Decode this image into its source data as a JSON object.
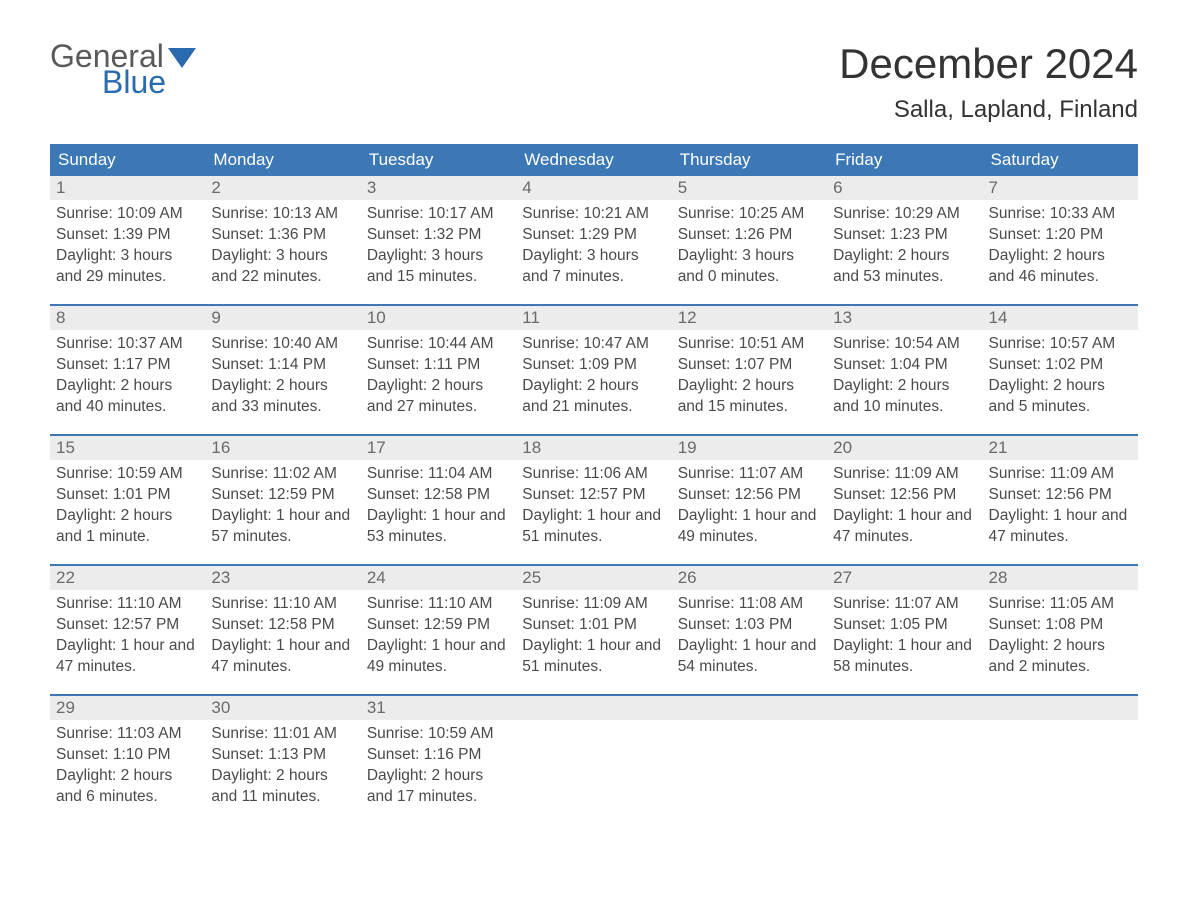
{
  "logo": {
    "general": "General",
    "blue": "Blue",
    "flag_color": "#2a6bb0"
  },
  "title": "December 2024",
  "location": "Salla, Lapland, Finland",
  "colors": {
    "header_bg": "#3b78b5",
    "header_text": "#ffffff",
    "daynum_bg": "#ececec",
    "week_divider": "#3b78b5",
    "body_text": "#4a4a4a",
    "page_bg": "#ffffff"
  },
  "weekdays": [
    "Sunday",
    "Monday",
    "Tuesday",
    "Wednesday",
    "Thursday",
    "Friday",
    "Saturday"
  ],
  "weeks": [
    [
      {
        "n": "1",
        "sunrise": "Sunrise: 10:09 AM",
        "sunset": "Sunset: 1:39 PM",
        "daylight": "Daylight: 3 hours and 29 minutes."
      },
      {
        "n": "2",
        "sunrise": "Sunrise: 10:13 AM",
        "sunset": "Sunset: 1:36 PM",
        "daylight": "Daylight: 3 hours and 22 minutes."
      },
      {
        "n": "3",
        "sunrise": "Sunrise: 10:17 AM",
        "sunset": "Sunset: 1:32 PM",
        "daylight": "Daylight: 3 hours and 15 minutes."
      },
      {
        "n": "4",
        "sunrise": "Sunrise: 10:21 AM",
        "sunset": "Sunset: 1:29 PM",
        "daylight": "Daylight: 3 hours and 7 minutes."
      },
      {
        "n": "5",
        "sunrise": "Sunrise: 10:25 AM",
        "sunset": "Sunset: 1:26 PM",
        "daylight": "Daylight: 3 hours and 0 minutes."
      },
      {
        "n": "6",
        "sunrise": "Sunrise: 10:29 AM",
        "sunset": "Sunset: 1:23 PM",
        "daylight": "Daylight: 2 hours and 53 minutes."
      },
      {
        "n": "7",
        "sunrise": "Sunrise: 10:33 AM",
        "sunset": "Sunset: 1:20 PM",
        "daylight": "Daylight: 2 hours and 46 minutes."
      }
    ],
    [
      {
        "n": "8",
        "sunrise": "Sunrise: 10:37 AM",
        "sunset": "Sunset: 1:17 PM",
        "daylight": "Daylight: 2 hours and 40 minutes."
      },
      {
        "n": "9",
        "sunrise": "Sunrise: 10:40 AM",
        "sunset": "Sunset: 1:14 PM",
        "daylight": "Daylight: 2 hours and 33 minutes."
      },
      {
        "n": "10",
        "sunrise": "Sunrise: 10:44 AM",
        "sunset": "Sunset: 1:11 PM",
        "daylight": "Daylight: 2 hours and 27 minutes."
      },
      {
        "n": "11",
        "sunrise": "Sunrise: 10:47 AM",
        "sunset": "Sunset: 1:09 PM",
        "daylight": "Daylight: 2 hours and 21 minutes."
      },
      {
        "n": "12",
        "sunrise": "Sunrise: 10:51 AM",
        "sunset": "Sunset: 1:07 PM",
        "daylight": "Daylight: 2 hours and 15 minutes."
      },
      {
        "n": "13",
        "sunrise": "Sunrise: 10:54 AM",
        "sunset": "Sunset: 1:04 PM",
        "daylight": "Daylight: 2 hours and 10 minutes."
      },
      {
        "n": "14",
        "sunrise": "Sunrise: 10:57 AM",
        "sunset": "Sunset: 1:02 PM",
        "daylight": "Daylight: 2 hours and 5 minutes."
      }
    ],
    [
      {
        "n": "15",
        "sunrise": "Sunrise: 10:59 AM",
        "sunset": "Sunset: 1:01 PM",
        "daylight": "Daylight: 2 hours and 1 minute."
      },
      {
        "n": "16",
        "sunrise": "Sunrise: 11:02 AM",
        "sunset": "Sunset: 12:59 PM",
        "daylight": "Daylight: 1 hour and 57 minutes."
      },
      {
        "n": "17",
        "sunrise": "Sunrise: 11:04 AM",
        "sunset": "Sunset: 12:58 PM",
        "daylight": "Daylight: 1 hour and 53 minutes."
      },
      {
        "n": "18",
        "sunrise": "Sunrise: 11:06 AM",
        "sunset": "Sunset: 12:57 PM",
        "daylight": "Daylight: 1 hour and 51 minutes."
      },
      {
        "n": "19",
        "sunrise": "Sunrise: 11:07 AM",
        "sunset": "Sunset: 12:56 PM",
        "daylight": "Daylight: 1 hour and 49 minutes."
      },
      {
        "n": "20",
        "sunrise": "Sunrise: 11:09 AM",
        "sunset": "Sunset: 12:56 PM",
        "daylight": "Daylight: 1 hour and 47 minutes."
      },
      {
        "n": "21",
        "sunrise": "Sunrise: 11:09 AM",
        "sunset": "Sunset: 12:56 PM",
        "daylight": "Daylight: 1 hour and 47 minutes."
      }
    ],
    [
      {
        "n": "22",
        "sunrise": "Sunrise: 11:10 AM",
        "sunset": "Sunset: 12:57 PM",
        "daylight": "Daylight: 1 hour and 47 minutes."
      },
      {
        "n": "23",
        "sunrise": "Sunrise: 11:10 AM",
        "sunset": "Sunset: 12:58 PM",
        "daylight": "Daylight: 1 hour and 47 minutes."
      },
      {
        "n": "24",
        "sunrise": "Sunrise: 11:10 AM",
        "sunset": "Sunset: 12:59 PM",
        "daylight": "Daylight: 1 hour and 49 minutes."
      },
      {
        "n": "25",
        "sunrise": "Sunrise: 11:09 AM",
        "sunset": "Sunset: 1:01 PM",
        "daylight": "Daylight: 1 hour and 51 minutes."
      },
      {
        "n": "26",
        "sunrise": "Sunrise: 11:08 AM",
        "sunset": "Sunset: 1:03 PM",
        "daylight": "Daylight: 1 hour and 54 minutes."
      },
      {
        "n": "27",
        "sunrise": "Sunrise: 11:07 AM",
        "sunset": "Sunset: 1:05 PM",
        "daylight": "Daylight: 1 hour and 58 minutes."
      },
      {
        "n": "28",
        "sunrise": "Sunrise: 11:05 AM",
        "sunset": "Sunset: 1:08 PM",
        "daylight": "Daylight: 2 hours and 2 minutes."
      }
    ],
    [
      {
        "n": "29",
        "sunrise": "Sunrise: 11:03 AM",
        "sunset": "Sunset: 1:10 PM",
        "daylight": "Daylight: 2 hours and 6 minutes."
      },
      {
        "n": "30",
        "sunrise": "Sunrise: 11:01 AM",
        "sunset": "Sunset: 1:13 PM",
        "daylight": "Daylight: 2 hours and 11 minutes."
      },
      {
        "n": "31",
        "sunrise": "Sunrise: 10:59 AM",
        "sunset": "Sunset: 1:16 PM",
        "daylight": "Daylight: 2 hours and 17 minutes."
      },
      null,
      null,
      null,
      null
    ]
  ]
}
